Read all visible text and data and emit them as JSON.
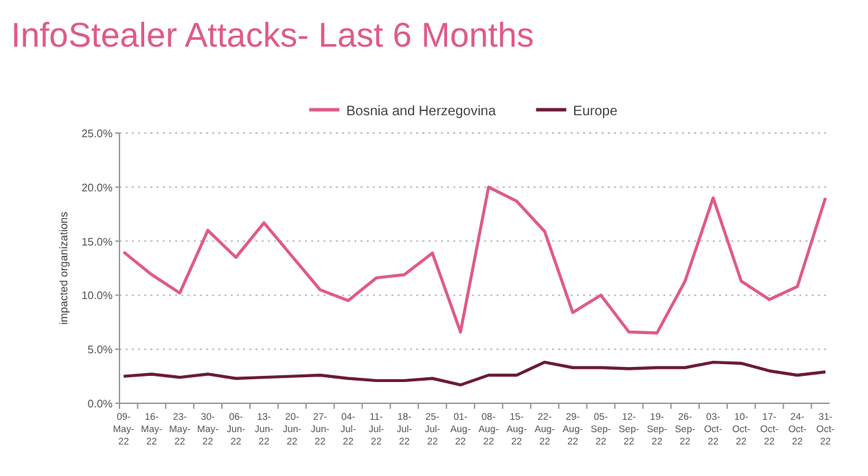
{
  "chart_data": {
    "type": "line",
    "title": "InfoStealer Attacks- Last 6 Months",
    "ylabel": "impacted organizations",
    "categories": [
      "09-May-22",
      "16-May-22",
      "23-May-22",
      "30-May-22",
      "06-Jun-22",
      "13-Jun-22",
      "20-Jun-22",
      "27-Jun-22",
      "04-Jul-22",
      "11-Jul-22",
      "18-Jul-22",
      "25-Jul-22",
      "01-Aug-22",
      "08-Aug-22",
      "15-Aug-22",
      "22-Aug-22",
      "29-Aug-22",
      "05-Sep-22",
      "12-Sep-22",
      "19-Sep-22",
      "26-Sep-22",
      "03-Oct-22",
      "10-Oct-22",
      "17-Oct-22",
      "24-Oct-22",
      "31-Oct-22"
    ],
    "series": [
      {
        "name": "Bosnia and Herzegovina",
        "color": "#e05a86",
        "values": [
          14.0,
          11.9,
          10.2,
          16.0,
          13.5,
          16.7,
          13.6,
          10.5,
          9.5,
          11.6,
          11.9,
          13.9,
          6.6,
          20.0,
          18.7,
          15.9,
          8.4,
          10.0,
          6.6,
          6.5,
          11.3,
          19.0,
          11.3,
          9.6,
          10.8,
          19.0
        ]
      },
      {
        "name": "Europe",
        "color": "#6b1a3a",
        "values": [
          2.5,
          2.7,
          2.4,
          2.7,
          2.3,
          2.4,
          2.5,
          2.6,
          2.3,
          2.1,
          2.1,
          2.3,
          1.7,
          2.6,
          2.6,
          3.8,
          3.3,
          3.3,
          3.2,
          3.3,
          3.3,
          3.8,
          3.7,
          3.0,
          2.6,
          2.9
        ]
      }
    ],
    "ylim": [
      0,
      25
    ],
    "yticks": [
      {
        "value": 0,
        "label": "0.0%"
      },
      {
        "value": 5,
        "label": "5.0%"
      },
      {
        "value": 10,
        "label": "10.0%"
      },
      {
        "value": 15,
        "label": "15.0%"
      },
      {
        "value": 20,
        "label": "20.0%"
      },
      {
        "value": 25,
        "label": "25.0%"
      }
    ],
    "grid": "y",
    "legend": "top",
    "marker": "none",
    "line_style": "solid"
  }
}
